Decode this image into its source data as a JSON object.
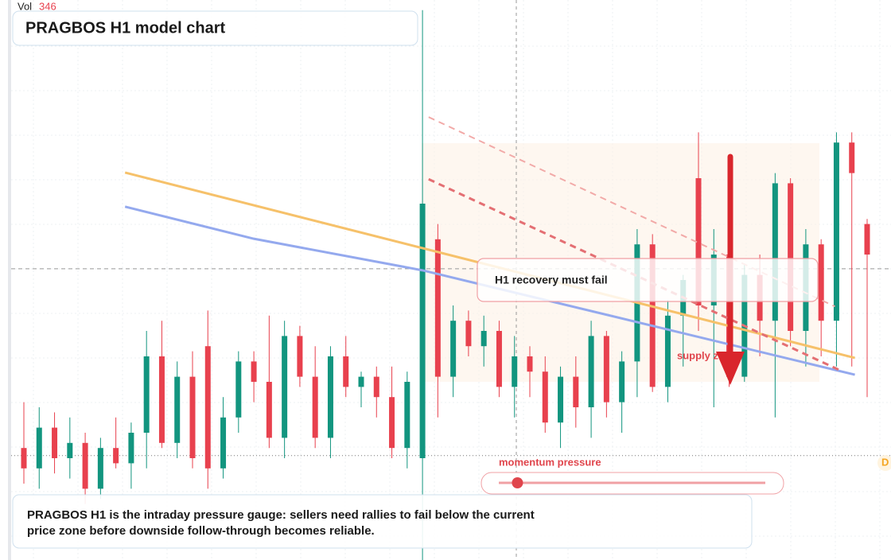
{
  "chart_data": {
    "type": "candlestick",
    "title": "PRAGBOS H1 model chart",
    "volume_label": "Vol",
    "volume_value": 346,
    "ylim": [
      90,
      200
    ],
    "up_color": "#12957f",
    "down_color": "#e8414e",
    "ohlc": [
      [
        112,
        121,
        105,
        108
      ],
      [
        108,
        120,
        104,
        116
      ],
      [
        116,
        119,
        107,
        110
      ],
      [
        110,
        118,
        106,
        113
      ],
      [
        113,
        115,
        101,
        104
      ],
      [
        104,
        114,
        102,
        112
      ],
      [
        112,
        118,
        108,
        109
      ],
      [
        109,
        117,
        104,
        115
      ],
      [
        115,
        135,
        108,
        130
      ],
      [
        130,
        137,
        112,
        113
      ],
      [
        113,
        129,
        110,
        126
      ],
      [
        126,
        131,
        108,
        110
      ],
      [
        132,
        139,
        104,
        108
      ],
      [
        108,
        122,
        106,
        118
      ],
      [
        118,
        131,
        115,
        129
      ],
      [
        129,
        131,
        121,
        125
      ],
      [
        125,
        138,
        112,
        114
      ],
      [
        114,
        137,
        110,
        134
      ],
      [
        134,
        136,
        124,
        126
      ],
      [
        126,
        132,
        112,
        114
      ],
      [
        114,
        132,
        110,
        130
      ],
      [
        130,
        134,
        122,
        124
      ],
      [
        124,
        127,
        120,
        126
      ],
      [
        126,
        128,
        118,
        122
      ],
      [
        122,
        128,
        110,
        112
      ],
      [
        112,
        127,
        108,
        125
      ],
      [
        110,
        198,
        90,
        160
      ],
      [
        153,
        156,
        118,
        126
      ],
      [
        126,
        140,
        122,
        137
      ],
      [
        137,
        139,
        130,
        132
      ],
      [
        132,
        138,
        128,
        135
      ],
      [
        135,
        137,
        122,
        124
      ],
      [
        124,
        134,
        118,
        130
      ],
      [
        130,
        132,
        122,
        127
      ],
      [
        127,
        130,
        115,
        117
      ],
      [
        117,
        128,
        112,
        126
      ],
      [
        126,
        130,
        116,
        120
      ],
      [
        120,
        137,
        114,
        134
      ],
      [
        134,
        135,
        118,
        121
      ],
      [
        121,
        131,
        115,
        129
      ],
      [
        129,
        155,
        122,
        152
      ],
      [
        152,
        154,
        123,
        124
      ],
      [
        124,
        141,
        121,
        138
      ],
      [
        138,
        146,
        128,
        145
      ],
      [
        165,
        174,
        135,
        140
      ],
      [
        140,
        155,
        120,
        150
      ],
      [
        150,
        150,
        124,
        126
      ],
      [
        126,
        148,
        125,
        146
      ],
      [
        146,
        150,
        130,
        137
      ],
      [
        137,
        166,
        118,
        164
      ],
      [
        164,
        165,
        132,
        135
      ],
      [
        135,
        155,
        128,
        152
      ],
      [
        152,
        153,
        130,
        137
      ],
      [
        137,
        174,
        128,
        172
      ],
      [
        172,
        174,
        128,
        166
      ],
      [
        156,
        157,
        122,
        150
      ]
    ],
    "lines": [
      {
        "color": "#f6c16a",
        "style": "solid",
        "points": [
          [
            6.6,
            166.1
          ],
          [
            54.2,
            129.7
          ]
        ]
      },
      {
        "color": "#94a9ee",
        "style": "solid",
        "points": [
          [
            6.6,
            159.4
          ],
          [
            15,
            153.1
          ],
          [
            26,
            146.9
          ],
          [
            54.2,
            126.4
          ]
        ]
      },
      {
        "color": "#e46f73",
        "style": "dashed",
        "points": [
          [
            26.4,
            164.8
          ],
          [
            53.2,
            127.3
          ]
        ]
      },
      {
        "color": "#f2aaa8",
        "style": "dashed",
        "points": [
          [
            26.4,
            177.0
          ],
          [
            52.9,
            139.8
          ]
        ]
      }
    ],
    "levels": [
      147.2,
      110.5
    ],
    "callout": "H1 recovery must fail",
    "zone_label": "supply zone",
    "momentum": {
      "label": "momentum pressure",
      "value": 7,
      "range": [
        0,
        100
      ]
    },
    "edge_tag": "D",
    "note_lines": [
      "PRAGBOS H1 is the intraday pressure gauge: sellers need rallies to fail below the current",
      "price zone before downside follow-through becomes reliable."
    ]
  }
}
